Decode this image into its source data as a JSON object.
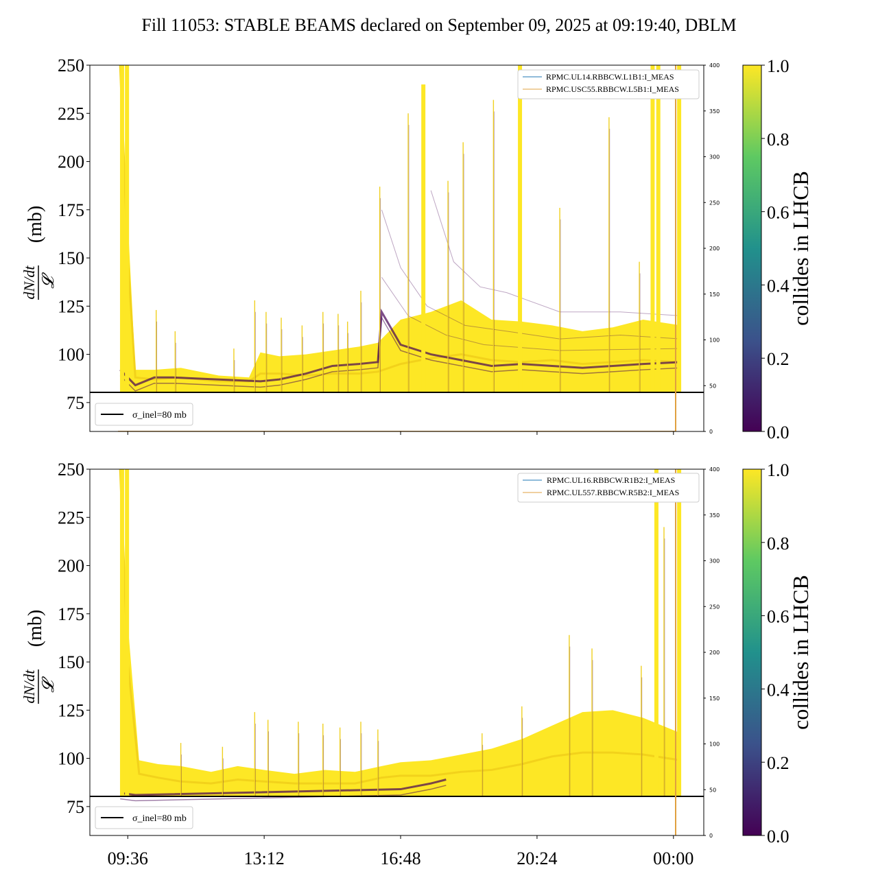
{
  "figure": {
    "title": "Fill 11053: STABLE BEAMS declared on September 09, 2025 at 09:19:40, DBLM"
  },
  "colors": {
    "yellow": "#fde725",
    "purple": "#440154",
    "colormap": [
      "#440154",
      "#3b528b",
      "#21918c",
      "#5ec962",
      "#fde725"
    ],
    "series_blue": "#1f77b4",
    "series_orange": "#e0a040",
    "reference_line": "#000000"
  },
  "chart_data": [
    {
      "type": "scatter",
      "panel": "top",
      "ylabel": "dN/dt / 𝓛 (mb)",
      "ylim": [
        60,
        250
      ],
      "yticks": [
        75,
        100,
        125,
        150,
        175,
        200,
        225,
        250
      ],
      "y2lim": [
        0,
        400
      ],
      "y2ticks": [
        0,
        50,
        100,
        150,
        200,
        250,
        300,
        350,
        400
      ],
      "xlim_hours": [
        8.6,
        24.8
      ],
      "xtick_labels": [
        "09:36",
        "13:12",
        "16:48",
        "20:24",
        "00:00"
      ],
      "xtick_hours": [
        9.6,
        13.2,
        16.8,
        20.4,
        24.0
      ],
      "colorbar": {
        "label": "collides in LHCB",
        "range": [
          0.0,
          1.0
        ],
        "ticks": [
          "0.0",
          "0.2",
          "0.4",
          "0.6",
          "0.8",
          "1.0"
        ]
      },
      "legend_top_right": [
        "RPMC.UL14.RBBCW.L1B1:I_MEAS",
        "RPMC.USC55.RBBCW.L5B1:I_MEAS"
      ],
      "legend_bottom_left": "σ_inel=80 mb",
      "reference_line_y": 80,
      "band_yellow_mid": [
        [
          9.4,
          250
        ],
        [
          9.6,
          150
        ],
        [
          9.8,
          88
        ],
        [
          10.3,
          87
        ],
        [
          11.0,
          88
        ],
        [
          12.0,
          86
        ],
        [
          12.8,
          86
        ],
        [
          13.1,
          90
        ],
        [
          13.6,
          90
        ],
        [
          14.3,
          89
        ],
        [
          15.0,
          90
        ],
        [
          15.7,
          90
        ],
        [
          16.2,
          91
        ],
        [
          16.8,
          95
        ],
        [
          17.6,
          98
        ],
        [
          18.4,
          100
        ],
        [
          19.2,
          97
        ],
        [
          20.0,
          96
        ],
        [
          20.8,
          97
        ],
        [
          21.6,
          95
        ],
        [
          22.4,
          96
        ],
        [
          23.2,
          97
        ],
        [
          24.2,
          96
        ]
      ],
      "band_yellow_top": [
        [
          9.4,
          250
        ],
        [
          9.6,
          170
        ],
        [
          9.8,
          92
        ],
        [
          10.3,
          92
        ],
        [
          11.0,
          93
        ],
        [
          12.0,
          89
        ],
        [
          12.8,
          88
        ],
        [
          13.1,
          101
        ],
        [
          13.6,
          99
        ],
        [
          14.3,
          100
        ],
        [
          15.0,
          102
        ],
        [
          15.7,
          104
        ],
        [
          16.2,
          106
        ],
        [
          16.8,
          118
        ],
        [
          17.6,
          122
        ],
        [
          18.4,
          128
        ],
        [
          19.2,
          118
        ],
        [
          20.0,
          117
        ],
        [
          20.8,
          115
        ],
        [
          21.6,
          112
        ],
        [
          22.4,
          114
        ],
        [
          23.2,
          118
        ],
        [
          24.2,
          115
        ]
      ],
      "band_purple_mid": [
        [
          9.4,
          92
        ],
        [
          9.8,
          84
        ],
        [
          10.3,
          88
        ],
        [
          10.8,
          88
        ],
        [
          13.1,
          86
        ],
        [
          13.6,
          87
        ],
        [
          14.3,
          90
        ],
        [
          15.0,
          94
        ],
        [
          15.7,
          95
        ],
        [
          16.2,
          96
        ],
        [
          16.3,
          122
        ],
        [
          16.8,
          105
        ],
        [
          17.6,
          100
        ],
        [
          18.4,
          97
        ],
        [
          19.2,
          94
        ],
        [
          20.0,
          95
        ],
        [
          20.8,
          94
        ],
        [
          21.6,
          93
        ],
        [
          22.4,
          94
        ],
        [
          23.2,
          95
        ],
        [
          24.2,
          96
        ]
      ],
      "spikes": [
        [
          9.45,
          250
        ],
        [
          9.58,
          250
        ],
        [
          10.35,
          123
        ],
        [
          10.85,
          112
        ],
        [
          12.4,
          103
        ],
        [
          12.95,
          128
        ],
        [
          13.25,
          122
        ],
        [
          13.65,
          119
        ],
        [
          14.2,
          115
        ],
        [
          14.75,
          122
        ],
        [
          15.15,
          121
        ],
        [
          15.4,
          117
        ],
        [
          15.75,
          133
        ],
        [
          16.25,
          187
        ],
        [
          17.0,
          225
        ],
        [
          17.4,
          240
        ],
        [
          18.05,
          190
        ],
        [
          18.45,
          210
        ],
        [
          19.25,
          232
        ],
        [
          19.95,
          250
        ],
        [
          21.0,
          176
        ],
        [
          22.3,
          223
        ],
        [
          23.1,
          148
        ],
        [
          23.45,
          250
        ],
        [
          23.6,
          250
        ],
        [
          24.15,
          250
        ]
      ],
      "purple_trails": [
        {
          "points": [
            [
              16.3,
              175
            ],
            [
              16.8,
              145
            ],
            [
              17.5,
              125
            ],
            [
              18.5,
              115
            ],
            [
              19.6,
              112
            ],
            [
              21.0,
              108
            ],
            [
              22.6,
              110
            ],
            [
              24.2,
              108
            ]
          ]
        },
        {
          "points": [
            [
              17.6,
              185
            ],
            [
              18.2,
              148
            ],
            [
              18.9,
              135
            ],
            [
              19.6,
              132
            ],
            [
              21.0,
              122
            ],
            [
              22.6,
              122
            ],
            [
              24.2,
              120
            ]
          ]
        },
        {
          "points": [
            [
              16.3,
              140
            ],
            [
              17.0,
              120
            ],
            [
              18.0,
              110
            ],
            [
              19.0,
              105
            ],
            [
              21.0,
              102
            ],
            [
              24.2,
              103
            ]
          ]
        }
      ]
    },
    {
      "type": "scatter",
      "panel": "bottom",
      "ylabel": "dN/dt / 𝓛 (mb)",
      "ylim": [
        60,
        250
      ],
      "yticks": [
        75,
        100,
        125,
        150,
        175,
        200,
        225,
        250
      ],
      "y2lim": [
        0,
        400
      ],
      "y2ticks": [
        0,
        50,
        100,
        150,
        200,
        250,
        300,
        350,
        400
      ],
      "xlim_hours": [
        8.6,
        24.8
      ],
      "xtick_labels": [
        "09:36",
        "13:12",
        "16:48",
        "20:24",
        "00:00"
      ],
      "xtick_hours": [
        9.6,
        13.2,
        16.8,
        20.4,
        24.0
      ],
      "colorbar": {
        "label": "collides in LHCB",
        "range": [
          0.0,
          1.0
        ],
        "ticks": [
          "0.0",
          "0.2",
          "0.4",
          "0.6",
          "0.8",
          "1.0"
        ]
      },
      "legend_top_right": [
        "RPMC.UL16.RBBCW.R1B2:I_MEAS",
        "RPMC.UL557.RBBCW.R5B2:I_MEAS"
      ],
      "legend_bottom_left": "σ_inel=80 mb",
      "reference_line_y": 80,
      "band_yellow_mid": [
        [
          9.4,
          250
        ],
        [
          9.6,
          150
        ],
        [
          9.9,
          92
        ],
        [
          10.4,
          90
        ],
        [
          11.0,
          88
        ],
        [
          11.8,
          87
        ],
        [
          12.5,
          89
        ],
        [
          13.2,
          88
        ],
        [
          14.0,
          87
        ],
        [
          14.8,
          87
        ],
        [
          15.6,
          87
        ],
        [
          16.3,
          90
        ],
        [
          16.8,
          91
        ],
        [
          17.6,
          91
        ],
        [
          18.4,
          93
        ],
        [
          19.2,
          94
        ],
        [
          20.0,
          97
        ],
        [
          20.8,
          101
        ],
        [
          21.6,
          103
        ],
        [
          22.4,
          103
        ],
        [
          23.2,
          102
        ],
        [
          24.2,
          99
        ]
      ],
      "band_yellow_top": [
        [
          9.4,
          250
        ],
        [
          9.6,
          170
        ],
        [
          9.9,
          99
        ],
        [
          10.4,
          97
        ],
        [
          11.0,
          96
        ],
        [
          11.8,
          93
        ],
        [
          12.5,
          96
        ],
        [
          13.2,
          94
        ],
        [
          14.0,
          92
        ],
        [
          14.8,
          94
        ],
        [
          15.6,
          93
        ],
        [
          16.3,
          96
        ],
        [
          16.8,
          98
        ],
        [
          17.6,
          99
        ],
        [
          18.4,
          102
        ],
        [
          19.2,
          105
        ],
        [
          20.0,
          110
        ],
        [
          20.8,
          117
        ],
        [
          21.6,
          124
        ],
        [
          22.4,
          125
        ],
        [
          23.2,
          121
        ],
        [
          24.2,
          113
        ]
      ],
      "band_purple_mid": [
        [
          9.4,
          82
        ],
        [
          9.8,
          81
        ],
        [
          16.8,
          84
        ],
        [
          17.6,
          87
        ],
        [
          18.0,
          89
        ]
      ],
      "spikes": [
        [
          9.45,
          250
        ],
        [
          9.58,
          250
        ],
        [
          11.0,
          108
        ],
        [
          12.1,
          106
        ],
        [
          12.95,
          124
        ],
        [
          13.3,
          120
        ],
        [
          14.1,
          119
        ],
        [
          14.75,
          118
        ],
        [
          15.2,
          116
        ],
        [
          15.75,
          119
        ],
        [
          16.2,
          115
        ],
        [
          18.95,
          113
        ],
        [
          20.0,
          127
        ],
        [
          21.25,
          164
        ],
        [
          21.85,
          157
        ],
        [
          23.15,
          148
        ],
        [
          23.55,
          250
        ],
        [
          23.75,
          220
        ],
        [
          24.15,
          250
        ]
      ],
      "purple_trails": []
    }
  ]
}
